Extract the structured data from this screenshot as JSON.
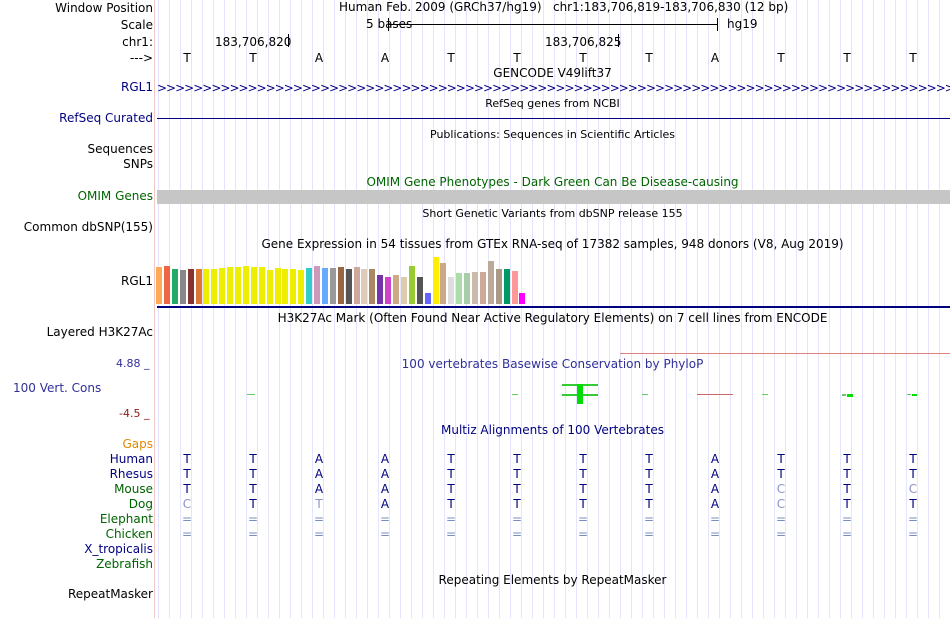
{
  "colors": {
    "link": "#000080",
    "omim": "#006400",
    "gaps": "#e08a00",
    "cons_max": "#30309a",
    "cons_min": "#8b1a1a"
  },
  "header": {
    "window_position_label": "Window Position",
    "scale_label": "Scale",
    "chrom_label": "chr1:",
    "strand_label": "--->",
    "assembly": "Human Feb. 2009 (GRCh37/hg19)",
    "position": "chr1:183,706,819-183,706,830 (12 bp)",
    "scale_text": "5 bases",
    "db": "hg19",
    "tick1": "183,706,820",
    "tick2": "183,706,825"
  },
  "sequence": [
    "T",
    "T",
    "A",
    "A",
    "T",
    "T",
    "T",
    "T",
    "A",
    "T",
    "T",
    "T"
  ],
  "tracks": {
    "gencode": {
      "title": "GENCODE V49lift37",
      "label": "RGL1"
    },
    "refseq": {
      "title": "RefSeq genes from NCBI",
      "label": "RefSeq Curated"
    },
    "publications": {
      "title": "Publications: Sequences in Scientific Articles",
      "label1": "Sequences",
      "label2": "SNPs"
    },
    "omim": {
      "title": "OMIM Gene Phenotypes - Dark Green Can Be Disease-causing",
      "label": "OMIM Genes"
    },
    "dbsnp": {
      "title": "Short Genetic Variants from dbSNP release 155",
      "label": "Common dbSNP(155)"
    },
    "gtex": {
      "title": "Gene Expression in 54 tissues from GTEx RNA-seq of 17382 samples, 948 donors (V8, Aug 2019)",
      "label": "RGL1"
    },
    "h3k27ac": {
      "title": "H3K27Ac Mark (Often Found Near Active Regulatory Elements) on 7 cell lines from ENCODE",
      "label": "Layered H3K27Ac"
    },
    "cons": {
      "title": "100 vertebrates Basewise Conservation by PhyloP",
      "label": "100 Vert. Cons",
      "max": "4.88 _",
      "min": "-4.5 _"
    },
    "multiz": {
      "title": "Multiz Alignments of 100 Vertebrates",
      "gaps_label": "Gaps"
    },
    "repeatmasker": {
      "title": "Repeating Elements by RepeatMasker",
      "label": "RepeatMasker"
    }
  },
  "species": [
    {
      "name": "Human",
      "bases": [
        "T",
        "T",
        "A",
        "A",
        "T",
        "T",
        "T",
        "T",
        "A",
        "T",
        "T",
        "T"
      ]
    },
    {
      "name": "Rhesus",
      "bases": [
        "T",
        "T",
        "A",
        "A",
        "T",
        "T",
        "T",
        "T",
        "A",
        "T",
        "T",
        "T"
      ]
    },
    {
      "name": "Mouse",
      "bases": [
        "T",
        "T",
        "A",
        "A",
        "T",
        "T",
        "T",
        "T",
        "A",
        "C",
        "T",
        "C"
      ]
    },
    {
      "name": "Dog",
      "bases": [
        "C",
        "T",
        "T",
        "A",
        "T",
        "T",
        "T",
        "T",
        "A",
        "C",
        "T",
        "T"
      ]
    },
    {
      "name": "Elephant",
      "bases": [
        "=",
        "=",
        "=",
        "=",
        "=",
        "=",
        "=",
        "=",
        "=",
        "=",
        "=",
        "="
      ]
    },
    {
      "name": "Chicken",
      "bases": [
        "=",
        "=",
        "=",
        "=",
        "=",
        "=",
        "=",
        "=",
        "=",
        "=",
        "=",
        "="
      ]
    },
    {
      "name": "X_tropicalis",
      "bases": []
    },
    {
      "name": "Zebrafish",
      "bases": []
    }
  ],
  "gtex_bars": [
    {
      "color": "#FFAA55",
      "value": 0.98
    },
    {
      "color": "#EE6644",
      "value": 1.0
    },
    {
      "color": "#22AA66",
      "value": 0.93
    },
    {
      "color": "#888888",
      "value": 0.9
    },
    {
      "color": "#883333",
      "value": 0.93
    },
    {
      "color": "#DD7733",
      "value": 0.93
    },
    {
      "color": "#EEEE00",
      "value": 0.93
    },
    {
      "color": "#EEEE00",
      "value": 0.93
    },
    {
      "color": "#EEEE00",
      "value": 0.95
    },
    {
      "color": "#EEEE00",
      "value": 0.98
    },
    {
      "color": "#EEEE00",
      "value": 0.98
    },
    {
      "color": "#EEEE00",
      "value": 1.0
    },
    {
      "color": "#EEEE00",
      "value": 0.98
    },
    {
      "color": "#EEEE00",
      "value": 0.98
    },
    {
      "color": "#EEEE00",
      "value": 0.9
    },
    {
      "color": "#EEEE00",
      "value": 0.95
    },
    {
      "color": "#EEEE00",
      "value": 0.93
    },
    {
      "color": "#EEEE00",
      "value": 0.93
    },
    {
      "color": "#EEEE00",
      "value": 0.9
    },
    {
      "color": "#33CCCC",
      "value": 0.95
    },
    {
      "color": "#CC99BB",
      "value": 1.0
    },
    {
      "color": "#66AAFF",
      "value": 0.95
    },
    {
      "color": "#999999",
      "value": 0.95
    },
    {
      "color": "#996644",
      "value": 0.98
    },
    {
      "color": "#555555",
      "value": 0.93
    },
    {
      "color": "#CCAA99",
      "value": 0.98
    },
    {
      "color": "#DDCCBB",
      "value": 0.93
    },
    {
      "color": "#AA8866",
      "value": 0.93
    },
    {
      "color": "#7733AA",
      "value": 0.77
    },
    {
      "color": "#CC44CC",
      "value": 0.7
    },
    {
      "color": "#CCAA88",
      "value": 0.77
    },
    {
      "color": "#DDCCAA",
      "value": 0.7
    },
    {
      "color": "#99CC33",
      "value": 1.0
    },
    {
      "color": "#555555",
      "value": 0.7
    },
    {
      "color": "#6666FF",
      "value": 0.28
    },
    {
      "color": "#FFEE00",
      "value": 1.23
    },
    {
      "color": "#CCAA88",
      "value": 1.07
    },
    {
      "color": "#DDDDDD",
      "value": 0.7
    },
    {
      "color": "#AADDAA",
      "value": 0.81
    },
    {
      "color": "#AACCAA",
      "value": 0.81
    },
    {
      "color": "#CCBBAA",
      "value": 0.84
    },
    {
      "color": "#CCAA99",
      "value": 0.84
    },
    {
      "color": "#BBAA99",
      "value": 1.14
    },
    {
      "color": "#AA9988",
      "value": 0.93
    },
    {
      "color": "#009966",
      "value": 0.93
    },
    {
      "color": "#FF9999",
      "value": 0.88
    },
    {
      "color": "#FF00FF",
      "value": 0.28
    }
  ]
}
